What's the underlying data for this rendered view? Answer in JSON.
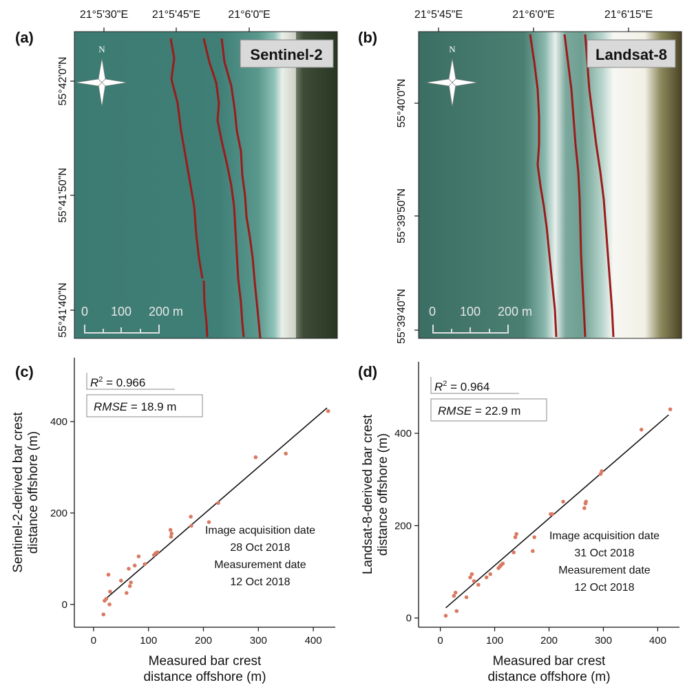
{
  "panels": {
    "a": {
      "letter": "(a)",
      "sensor": "Sentinel-2",
      "lon_labels": [
        "21°5'30\"E",
        "21°5'45\"E",
        "21°6'0\"E"
      ],
      "lat_labels": [
        "55°42'0\"N",
        "55°41'50\"N",
        "55°41'40\"N"
      ],
      "north": "N",
      "scale_labels": [
        "0",
        "100",
        "200 m"
      ]
    },
    "b": {
      "letter": "(b)",
      "sensor": "Landsat-8",
      "lon_labels": [
        "21°5'45\"E",
        "21°6'0\"E",
        "21°6'15\"E"
      ],
      "lat_labels": [
        "55°40'0\"N",
        "55°39'50\"N",
        "55°39'40\"N"
      ],
      "north": "N",
      "scale_labels": [
        "0",
        "100",
        "200 m"
      ]
    }
  },
  "colors": {
    "points": "#d97a63",
    "fit_line": "#111111",
    "crest_lines": "#9b1b1b"
  },
  "chart_data": [
    {
      "id": "c",
      "type": "scatter",
      "letter": "(c)",
      "xlabel": [
        "Measured bar crest",
        "distance offshore (m)"
      ],
      "ylabel": [
        "Sentinel-2-derived bar crest",
        "distance offshore (m)"
      ],
      "xlim": [
        -35,
        440
      ],
      "ylim": [
        -50,
        540
      ],
      "xticks": [
        0,
        100,
        200,
        300,
        400
      ],
      "yticks": [
        0,
        200,
        400
      ],
      "stats": {
        "r2_label": "= 0.966",
        "rmse_name": "RMSE",
        "rmse_label": "= 18.9 m"
      },
      "annotation": [
        "Image acquisition date",
        "28 Oct 2018",
        "Measurement date",
        "12 Oct 2018"
      ],
      "fit_line": {
        "x": [
          18,
          425
        ],
        "y": [
          8,
          430
        ]
      },
      "points": [
        [
          18,
          -22
        ],
        [
          20,
          8
        ],
        [
          23,
          12
        ],
        [
          27,
          65
        ],
        [
          29,
          0
        ],
        [
          30,
          28
        ],
        [
          50,
          52
        ],
        [
          60,
          25
        ],
        [
          64,
          78
        ],
        [
          66,
          40
        ],
        [
          68,
          48
        ],
        [
          75,
          85
        ],
        [
          82,
          105
        ],
        [
          93,
          88
        ],
        [
          110,
          108
        ],
        [
          113,
          112
        ],
        [
          116,
          114
        ],
        [
          140,
          163
        ],
        [
          141,
          148
        ],
        [
          142,
          155
        ],
        [
          177,
          192
        ],
        [
          178,
          172
        ],
        [
          210,
          180
        ],
        [
          227,
          222
        ],
        [
          295,
          322
        ],
        [
          350,
          330
        ],
        [
          427,
          423
        ]
      ]
    },
    {
      "id": "d",
      "type": "scatter",
      "letter": "(d)",
      "xlabel": [
        "Measured bar crest",
        "distance offshore (m)"
      ],
      "ylabel": [
        "Landsat-8-derived bar crest",
        "distance offshore (m)"
      ],
      "xlim": [
        -40,
        440
      ],
      "ylim": [
        -20,
        555
      ],
      "xticks": [
        0,
        100,
        200,
        300,
        400
      ],
      "yticks": [
        0,
        200,
        400
      ],
      "stats": {
        "r2_label": "= 0.964",
        "rmse_name": "RMSE",
        "rmse_label": "= 22.9 m"
      },
      "annotation": [
        "Image acquisition date",
        "31 Oct 2018",
        "Measurement date",
        "12 Oct 2018"
      ],
      "fit_line": {
        "x": [
          10,
          420
        ],
        "y": [
          22,
          440
        ]
      },
      "points": [
        [
          10,
          5
        ],
        [
          25,
          48
        ],
        [
          28,
          55
        ],
        [
          30,
          15
        ],
        [
          48,
          45
        ],
        [
          55,
          88
        ],
        [
          58,
          95
        ],
        [
          62,
          80
        ],
        [
          70,
          72
        ],
        [
          85,
          88
        ],
        [
          92,
          95
        ],
        [
          107,
          108
        ],
        [
          110,
          112
        ],
        [
          112,
          115
        ],
        [
          115,
          118
        ],
        [
          135,
          142
        ],
        [
          138,
          175
        ],
        [
          140,
          182
        ],
        [
          170,
          145
        ],
        [
          173,
          175
        ],
        [
          203,
          225
        ],
        [
          206,
          225
        ],
        [
          226,
          252
        ],
        [
          265,
          238
        ],
        [
          267,
          248
        ],
        [
          268,
          252
        ],
        [
          295,
          312
        ],
        [
          297,
          318
        ],
        [
          370,
          408
        ],
        [
          423,
          452
        ]
      ]
    }
  ]
}
